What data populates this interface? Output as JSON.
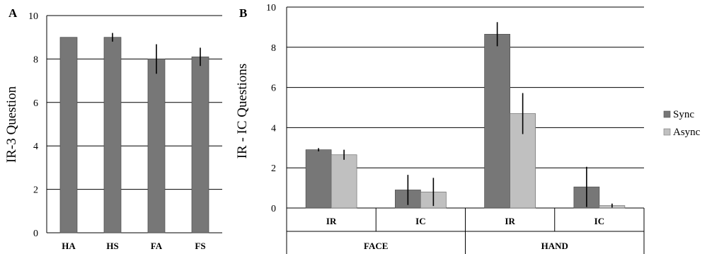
{
  "chart_data": [
    {
      "type": "bar",
      "panel_label": "A",
      "categories": [
        "HA",
        "HS",
        "FA",
        "FS"
      ],
      "series": [
        {
          "values": [
            9.0,
            9.0,
            8.0,
            8.1
          ],
          "errors": [
            0.0,
            0.2,
            0.68,
            0.42
          ],
          "color": "#777777"
        }
      ],
      "ylabel": "IR-3 Question",
      "ylim": [
        0,
        10
      ],
      "yticks": [
        0,
        2,
        4,
        6,
        8,
        10
      ],
      "grid": true
    },
    {
      "type": "bar",
      "panel_label": "B",
      "groups": [
        {
          "label": "FACE",
          "categories": [
            "IR",
            "IC"
          ]
        },
        {
          "label": "HAND",
          "categories": [
            "IR",
            "IC"
          ]
        }
      ],
      "series": [
        {
          "name": "Sync",
          "values": [
            2.9,
            0.9,
            8.65,
            1.05
          ],
          "errors": [
            0.08,
            0.75,
            0.6,
            1.0
          ],
          "color": "#777777"
        },
        {
          "name": "Async",
          "values": [
            2.65,
            0.8,
            4.7,
            0.12
          ],
          "errors": [
            0.25,
            0.7,
            1.02,
            0.1
          ],
          "color": "#c0c0c0"
        }
      ],
      "ylabel": "IR - IC Questions",
      "ylim": [
        0,
        10
      ],
      "yticks": [
        0,
        2,
        4,
        6,
        8,
        10
      ],
      "grid": true,
      "legend_position": "right"
    }
  ]
}
